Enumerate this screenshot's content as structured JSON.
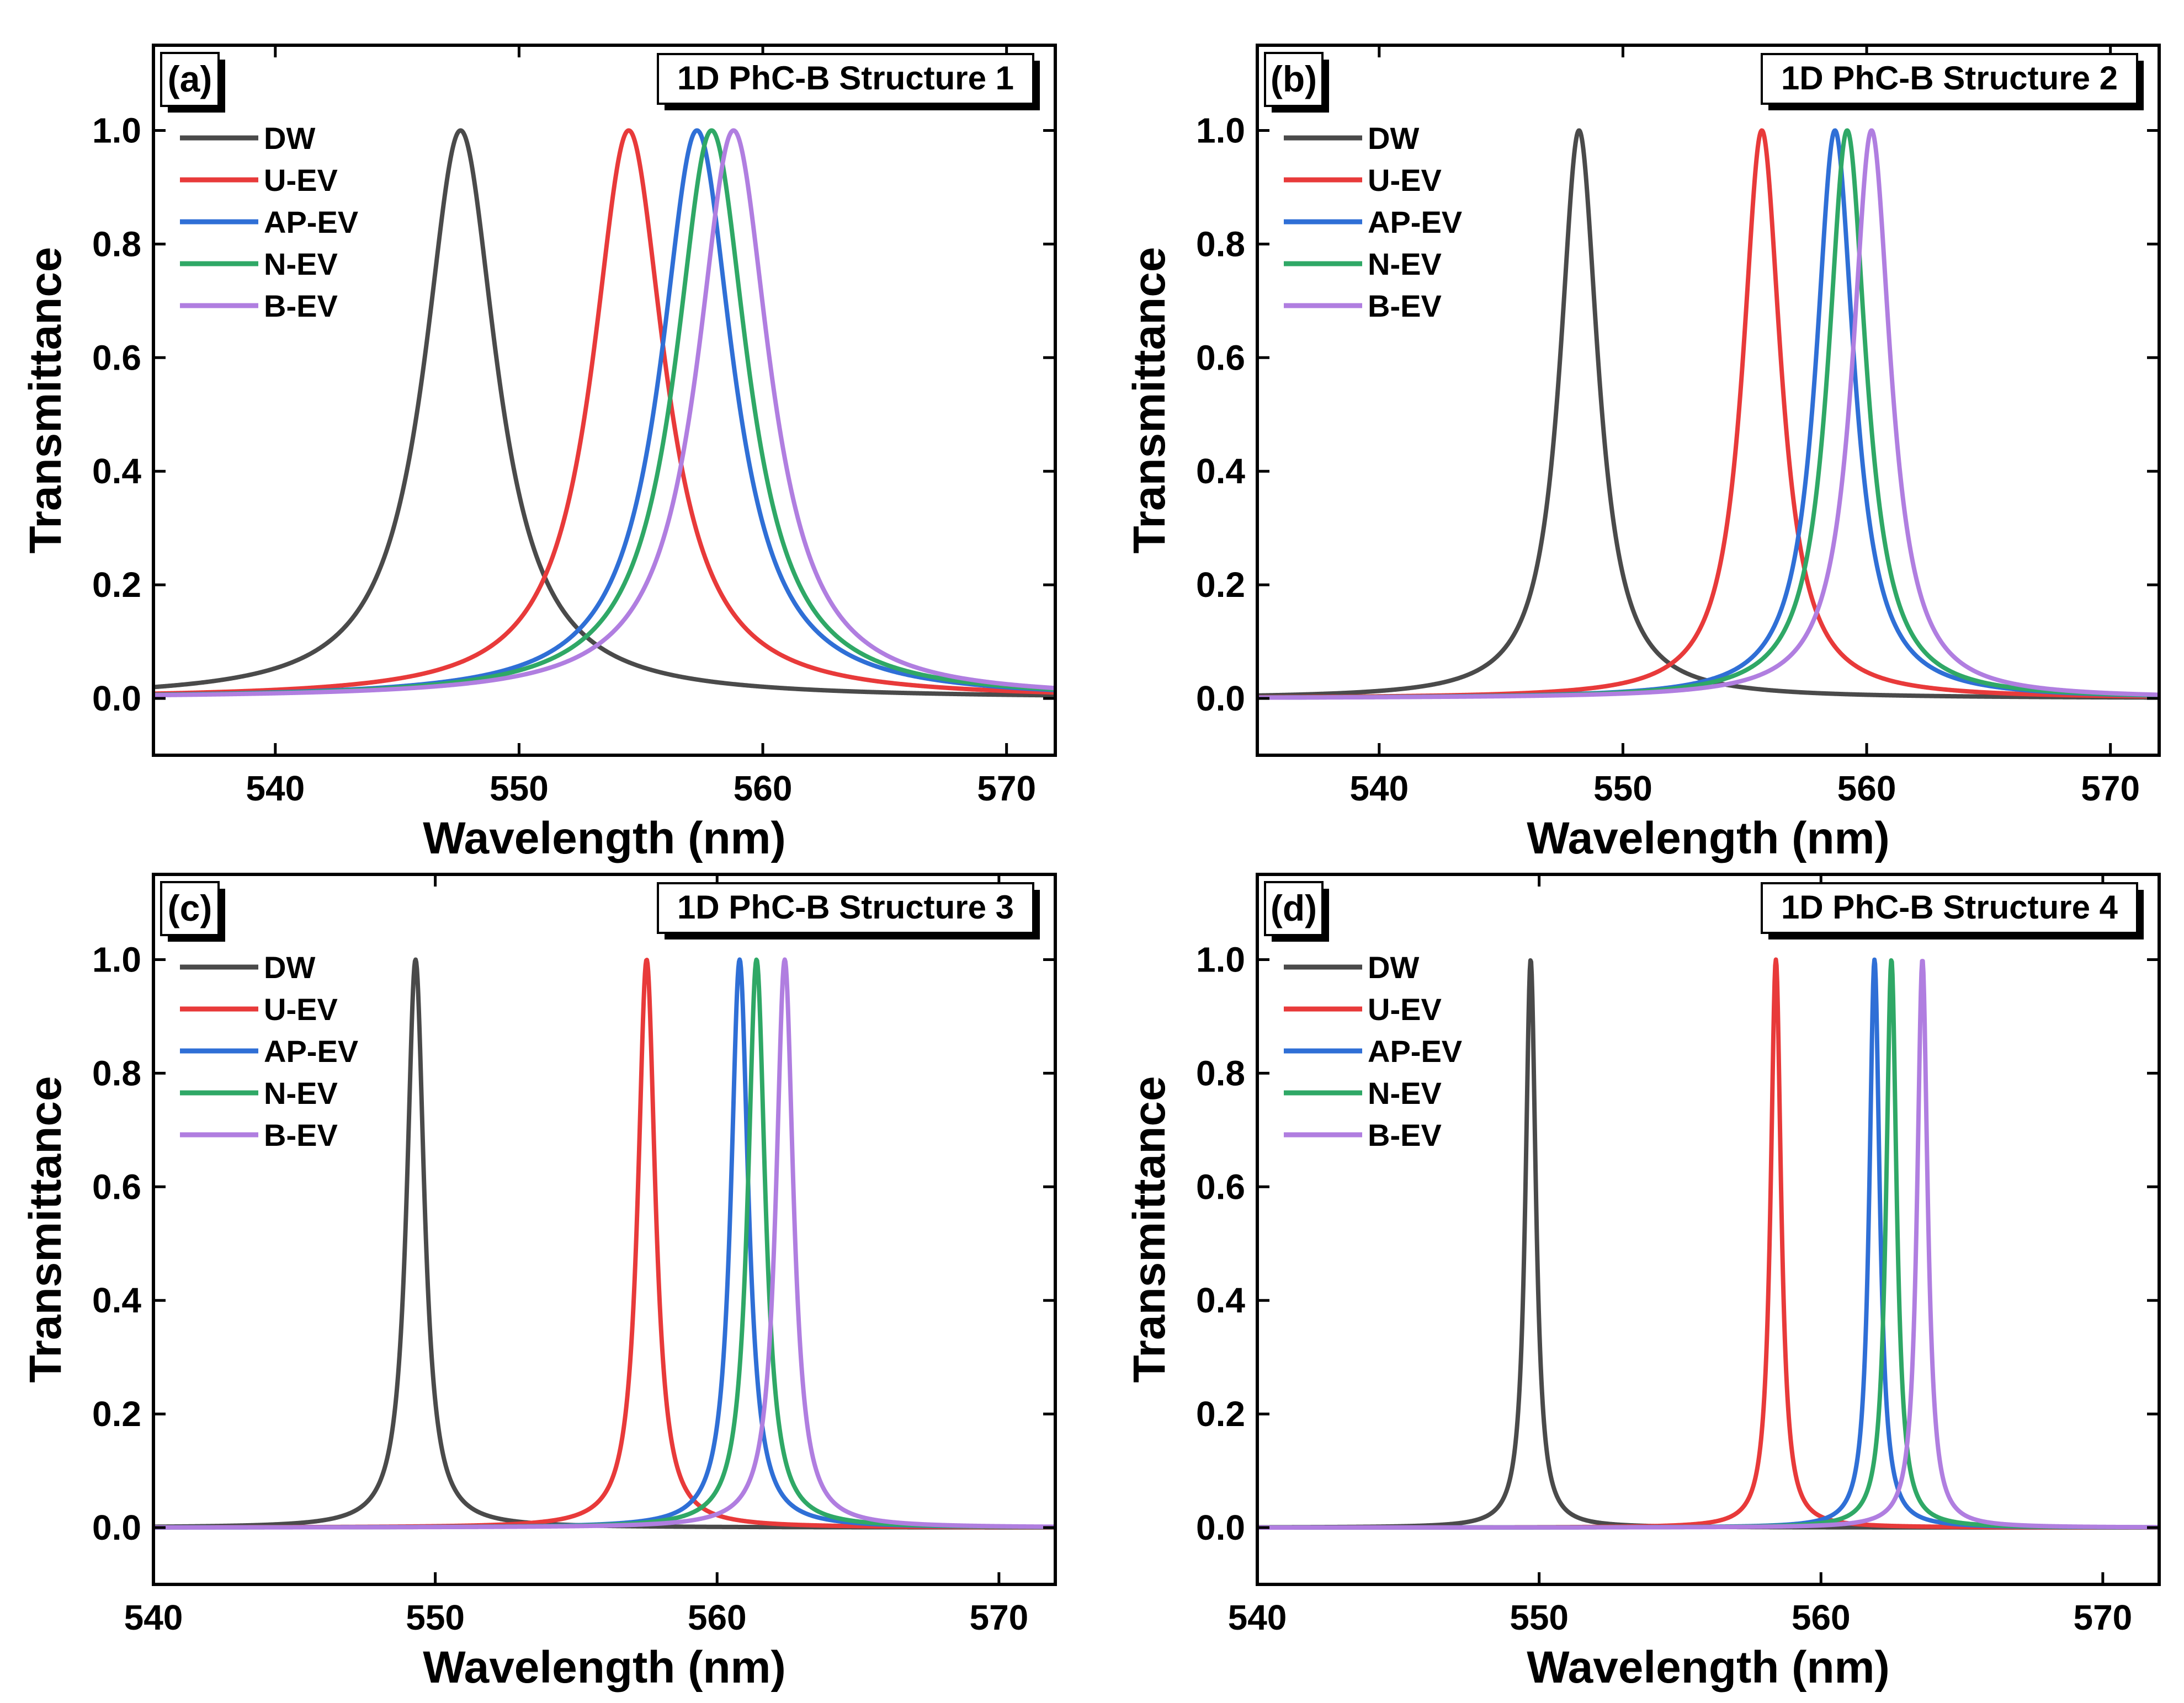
{
  "figure": {
    "legend_position": "top-left",
    "series_colors": {
      "DW": "#4a4a4a",
      "U-EV": "#e83a3a",
      "AP-EV": "#2f6fd6",
      "N-EV": "#2fa866",
      "B-EV": "#b07ee0"
    }
  },
  "chart_data": [
    {
      "type": "line",
      "panel_label": "(a)",
      "title": "1D PhC-B Structure 1",
      "xlabel": "Wavelength (nm)",
      "ylabel": "Transmittance",
      "xlim": [
        535,
        572
      ],
      "ylim": [
        -0.1,
        1.15
      ],
      "xticks": [
        540,
        550,
        560,
        570
      ],
      "xtick_labels": [
        "540",
        "550",
        "560",
        "570"
      ],
      "yticks": [
        0.0,
        0.2,
        0.4,
        0.6,
        0.8,
        1.0
      ],
      "ytick_labels": [
        "0.0",
        "0.2",
        "0.4",
        "0.6",
        "0.8",
        "1.0"
      ],
      "series": [
        {
          "name": "DW",
          "peak_nm": 547.6,
          "fwhm_nm": 3.6
        },
        {
          "name": "U-EV",
          "peak_nm": 554.5,
          "fwhm_nm": 3.6
        },
        {
          "name": "AP-EV",
          "peak_nm": 557.3,
          "fwhm_nm": 3.6
        },
        {
          "name": "N-EV",
          "peak_nm": 557.9,
          "fwhm_nm": 3.6
        },
        {
          "name": "B-EV",
          "peak_nm": 558.8,
          "fwhm_nm": 3.6
        }
      ]
    },
    {
      "type": "line",
      "panel_label": "(b)",
      "title": "1D PhC-B Structure 2",
      "xlabel": "Wavelength (nm)",
      "ylabel": "Transmittance",
      "xlim": [
        535,
        572
      ],
      "ylim": [
        -0.1,
        1.15
      ],
      "xticks": [
        540,
        550,
        560,
        570
      ],
      "xtick_labels": [
        "540",
        "550",
        "560",
        "570"
      ],
      "yticks": [
        0.0,
        0.2,
        0.4,
        0.6,
        0.8,
        1.0
      ],
      "ytick_labels": [
        "0.0",
        "0.2",
        "0.4",
        "0.6",
        "0.8",
        "1.0"
      ],
      "series": [
        {
          "name": "DW",
          "peak_nm": 548.2,
          "fwhm_nm": 1.9
        },
        {
          "name": "U-EV",
          "peak_nm": 555.7,
          "fwhm_nm": 1.9
        },
        {
          "name": "AP-EV",
          "peak_nm": 558.7,
          "fwhm_nm": 1.9
        },
        {
          "name": "N-EV",
          "peak_nm": 559.2,
          "fwhm_nm": 1.9
        },
        {
          "name": "B-EV",
          "peak_nm": 560.2,
          "fwhm_nm": 1.9
        }
      ]
    },
    {
      "type": "line",
      "panel_label": "(c)",
      "title": "1D PhC-B Structure 3",
      "xlabel": "Wavelength (nm)",
      "ylabel": "Transmittance",
      "xlim": [
        540,
        572
      ],
      "ylim": [
        -0.1,
        1.15
      ],
      "xticks": [
        540,
        550,
        560,
        570
      ],
      "xtick_labels": [
        "540",
        "550",
        "560",
        "570"
      ],
      "yticks": [
        0.0,
        0.2,
        0.4,
        0.6,
        0.8,
        1.0
      ],
      "ytick_labels": [
        "0.0",
        "0.2",
        "0.4",
        "0.6",
        "0.8",
        "1.0"
      ],
      "series": [
        {
          "name": "DW",
          "peak_nm": 549.3,
          "fwhm_nm": 0.75
        },
        {
          "name": "U-EV",
          "peak_nm": 557.5,
          "fwhm_nm": 0.75
        },
        {
          "name": "AP-EV",
          "peak_nm": 560.8,
          "fwhm_nm": 0.75
        },
        {
          "name": "N-EV",
          "peak_nm": 561.4,
          "fwhm_nm": 0.75
        },
        {
          "name": "B-EV",
          "peak_nm": 562.4,
          "fwhm_nm": 0.75
        }
      ]
    },
    {
      "type": "line",
      "panel_label": "(d)",
      "title": "1D PhC-B Structure 4",
      "xlabel": "Wavelength (nm)",
      "ylabel": "Transmittance",
      "xlim": [
        540,
        572
      ],
      "ylim": [
        -0.1,
        1.15
      ],
      "xticks": [
        540,
        550,
        560,
        570
      ],
      "xtick_labels": [
        "540",
        "550",
        "560",
        "570"
      ],
      "yticks": [
        0.0,
        0.2,
        0.4,
        0.6,
        0.8,
        1.0
      ],
      "ytick_labels": [
        "0.0",
        "0.2",
        "0.4",
        "0.6",
        "0.8",
        "1.0"
      ],
      "series": [
        {
          "name": "DW",
          "peak_nm": 549.7,
          "fwhm_nm": 0.45
        },
        {
          "name": "U-EV",
          "peak_nm": 558.4,
          "fwhm_nm": 0.45
        },
        {
          "name": "AP-EV",
          "peak_nm": 561.9,
          "fwhm_nm": 0.45
        },
        {
          "name": "N-EV",
          "peak_nm": 562.5,
          "fwhm_nm": 0.45
        },
        {
          "name": "B-EV",
          "peak_nm": 563.6,
          "fwhm_nm": 0.45
        }
      ]
    }
  ]
}
